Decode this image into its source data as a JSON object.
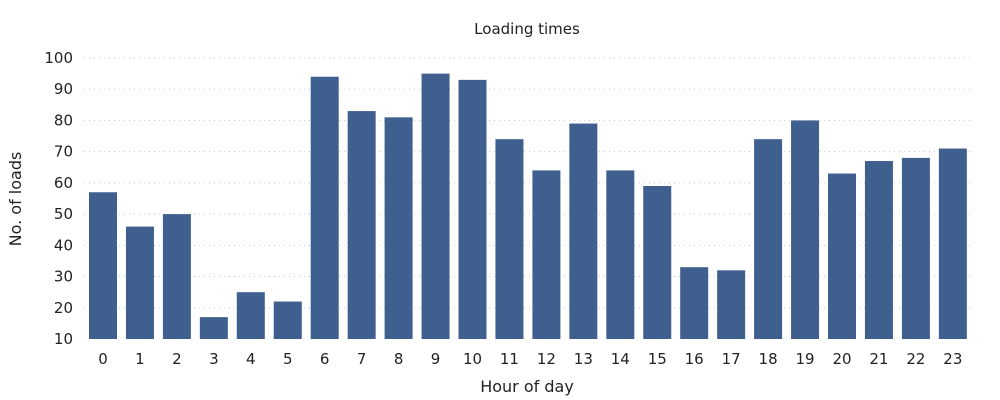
{
  "chart_data": {
    "type": "bar",
    "title": "Loading times",
    "xlabel": "Hour of day",
    "ylabel": "No. of loads",
    "categories": [
      "0",
      "1",
      "2",
      "3",
      "4",
      "5",
      "6",
      "7",
      "8",
      "9",
      "10",
      "11",
      "12",
      "13",
      "14",
      "15",
      "16",
      "17",
      "18",
      "19",
      "20",
      "21",
      "22",
      "23"
    ],
    "values": [
      57,
      46,
      50,
      17,
      25,
      22,
      94,
      83,
      81,
      95,
      93,
      74,
      64,
      79,
      64,
      59,
      33,
      32,
      74,
      80,
      63,
      67,
      68,
      71
    ],
    "ylim": [
      10,
      100
    ],
    "yticks": [
      10,
      20,
      30,
      40,
      50,
      60,
      70,
      80,
      90,
      100
    ],
    "grid": true,
    "bar_color": "#3f5f8f"
  }
}
